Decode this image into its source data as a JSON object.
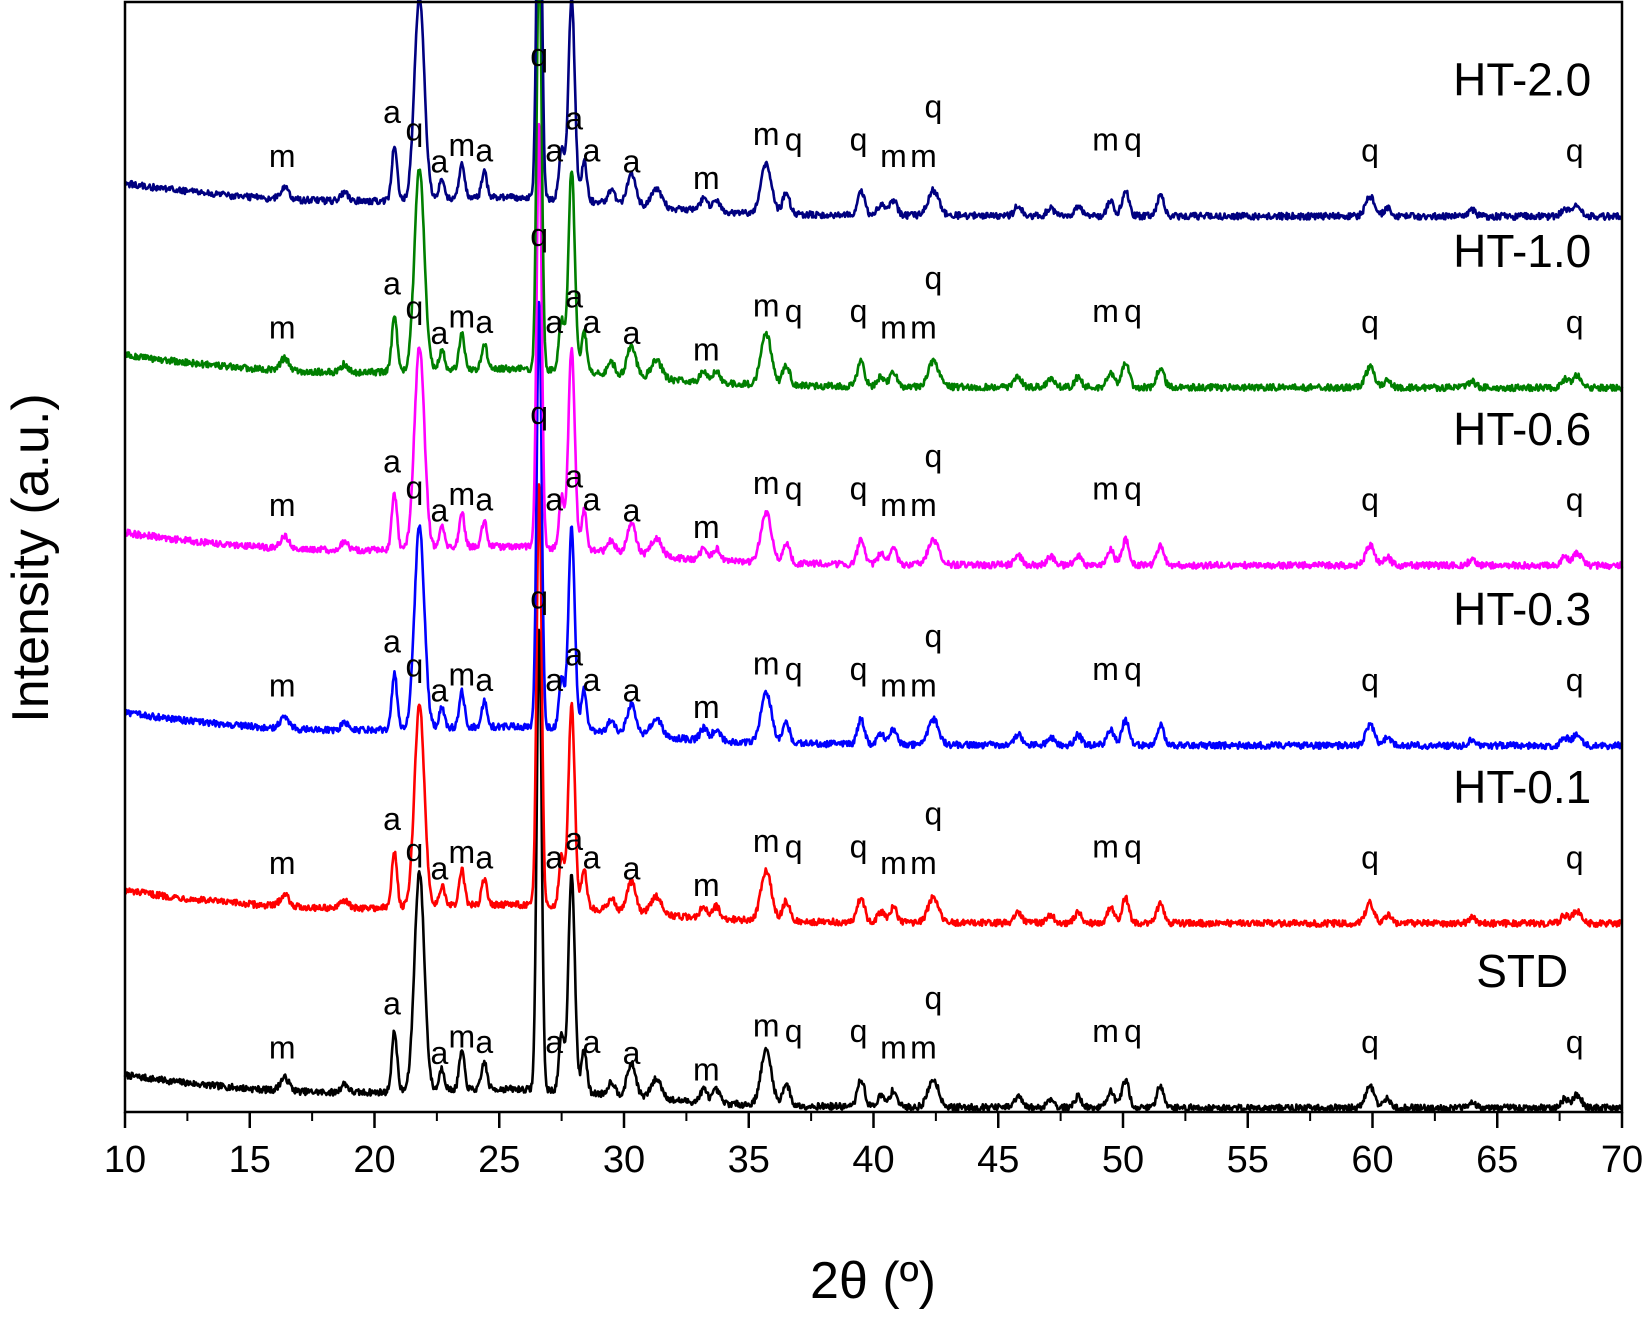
{
  "chart_data": {
    "type": "line",
    "title": "",
    "xlabel": "2θ (º)",
    "ylabel": "Intensity (a.u.)",
    "xlim": [
      10,
      70
    ],
    "x_ticks": [
      10,
      15,
      20,
      25,
      30,
      35,
      40,
      45,
      50,
      55,
      60,
      65,
      70
    ],
    "x_tick_labels": [
      "10",
      "15",
      "20",
      "25",
      "30",
      "35",
      "40",
      "45",
      "50",
      "55",
      "60",
      "65",
      "70"
    ],
    "y_ticks_shown": false,
    "grid": false,
    "legend": "series labels at right",
    "peaks": [
      {
        "pos": 16.4,
        "amp": 0.012,
        "w": 0.25
      },
      {
        "pos": 18.8,
        "amp": 0.008,
        "w": 0.2
      },
      {
        "pos": 20.8,
        "amp": 0.055,
        "w": 0.15
      },
      {
        "pos": 21.8,
        "amp": 0.2,
        "w": 0.28
      },
      {
        "pos": 22.7,
        "amp": 0.02,
        "w": 0.15
      },
      {
        "pos": 23.5,
        "amp": 0.035,
        "w": 0.15
      },
      {
        "pos": 24.4,
        "amp": 0.025,
        "w": 0.15
      },
      {
        "pos": 26.6,
        "amp": 0.42,
        "w": 0.14
      },
      {
        "pos": 27.5,
        "amp": 0.05,
        "w": 0.15
      },
      {
        "pos": 27.9,
        "amp": 0.2,
        "w": 0.18
      },
      {
        "pos": 28.4,
        "amp": 0.04,
        "w": 0.15
      },
      {
        "pos": 29.5,
        "amp": 0.012,
        "w": 0.2
      },
      {
        "pos": 30.3,
        "amp": 0.03,
        "w": 0.25
      },
      {
        "pos": 31.3,
        "amp": 0.018,
        "w": 0.3
      },
      {
        "pos": 33.2,
        "amp": 0.012,
        "w": 0.2
      },
      {
        "pos": 33.7,
        "amp": 0.012,
        "w": 0.2
      },
      {
        "pos": 35.7,
        "amp": 0.05,
        "w": 0.3
      },
      {
        "pos": 36.5,
        "amp": 0.02,
        "w": 0.2
      },
      {
        "pos": 39.5,
        "amp": 0.025,
        "w": 0.2
      },
      {
        "pos": 40.3,
        "amp": 0.01,
        "w": 0.2
      },
      {
        "pos": 40.8,
        "amp": 0.015,
        "w": 0.2
      },
      {
        "pos": 42.4,
        "amp": 0.025,
        "w": 0.3
      },
      {
        "pos": 45.8,
        "amp": 0.01,
        "w": 0.2
      },
      {
        "pos": 47.1,
        "amp": 0.008,
        "w": 0.2
      },
      {
        "pos": 48.2,
        "amp": 0.01,
        "w": 0.2
      },
      {
        "pos": 49.5,
        "amp": 0.015,
        "w": 0.2
      },
      {
        "pos": 50.1,
        "amp": 0.025,
        "w": 0.2
      },
      {
        "pos": 51.5,
        "amp": 0.02,
        "w": 0.2
      },
      {
        "pos": 59.9,
        "amp": 0.02,
        "w": 0.25
      },
      {
        "pos": 60.6,
        "amp": 0.008,
        "w": 0.2
      },
      {
        "pos": 64.0,
        "amp": 0.006,
        "w": 0.2
      },
      {
        "pos": 67.7,
        "amp": 0.008,
        "w": 0.2
      },
      {
        "pos": 68.2,
        "amp": 0.012,
        "w": 0.25
      }
    ],
    "series": [
      {
        "name": "STD",
        "label": "STD",
        "color": "#000000",
        "baseline": 0.0,
        "scale": 1.0
      },
      {
        "name": "HT-0.1",
        "label": "HT-0.1",
        "color": "#ff0000",
        "baseline": 0.168,
        "scale": 0.92
      },
      {
        "name": "HT-0.3",
        "label": "HT-0.3",
        "color": "#0000ff",
        "baseline": 0.33,
        "scale": 0.92
      },
      {
        "name": "HT-0.6",
        "label": "HT-0.6",
        "color": "#ff00ff",
        "baseline": 0.494,
        "scale": 0.92
      },
      {
        "name": "HT-1.0",
        "label": "HT-1.0",
        "color": "#007f00",
        "baseline": 0.656,
        "scale": 0.92
      },
      {
        "name": "HT-2.0",
        "label": "HT-2.0",
        "color": "#000080",
        "baseline": 0.812,
        "scale": 0.92
      }
    ],
    "annotations": [
      {
        "text": "m",
        "x": 16.3,
        "dy": 0.045
      },
      {
        "text": "a",
        "x": 20.7,
        "dy": 0.085
      },
      {
        "text": "q",
        "x": 21.6,
        "dy": 0.225
      },
      {
        "text": "a",
        "x": 22.6,
        "dy": 0.04
      },
      {
        "text": "m",
        "x": 23.5,
        "dy": 0.055
      },
      {
        "text": "a",
        "x": 24.4,
        "dy": 0.05
      },
      {
        "text": "q",
        "x": 26.6,
        "dy": 0.455
      },
      {
        "text": "a",
        "x": 27.2,
        "dy": 0.05
      },
      {
        "text": "a",
        "x": 28.0,
        "dy": 0.235
      },
      {
        "text": "a",
        "x": 28.7,
        "dy": 0.05
      },
      {
        "text": "a",
        "x": 30.3,
        "dy": 0.04
      },
      {
        "text": "m",
        "x": 33.3,
        "dy": 0.025
      },
      {
        "text": "m",
        "x": 35.7,
        "dy": 0.065
      },
      {
        "text": "q",
        "x": 36.8,
        "dy": 0.06
      },
      {
        "text": "q",
        "x": 39.4,
        "dy": 0.06
      },
      {
        "text": "m",
        "x": 40.8,
        "dy": 0.045
      },
      {
        "text": "m",
        "x": 42.0,
        "dy": 0.045
      },
      {
        "text": "q",
        "x": 42.4,
        "dy": 0.09
      },
      {
        "text": "m",
        "x": 49.3,
        "dy": 0.06
      },
      {
        "text": "q",
        "x": 50.4,
        "dy": 0.06
      },
      {
        "text": "q",
        "x": 59.9,
        "dy": 0.05
      },
      {
        "text": "q",
        "x": 68.1,
        "dy": 0.05
      }
    ]
  }
}
